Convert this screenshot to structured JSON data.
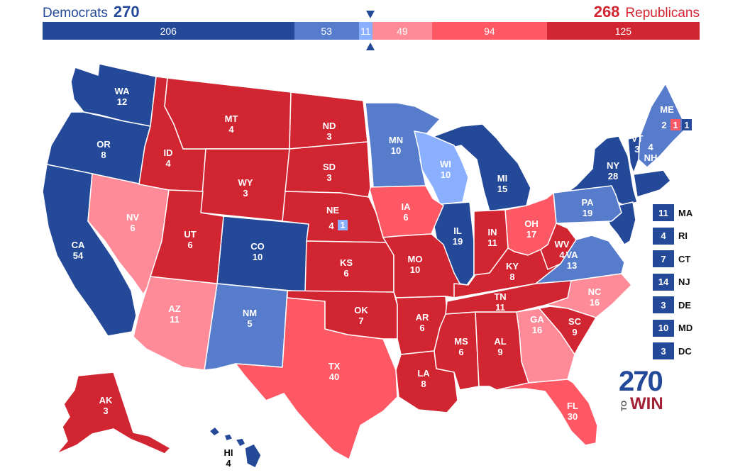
{
  "header": {
    "dem_label": "Democrats",
    "dem_total": "270",
    "rep_total": "268",
    "rep_label": "Republicans"
  },
  "colors": {
    "safe_dem": "#244999",
    "likely_dem": "#577ccc",
    "lean_dem": "#8aafff",
    "lean_rep": "#ff8b98",
    "likely_rep": "#ff5865",
    "safe_rep": "#d22532"
  },
  "tally": [
    {
      "value": "206",
      "color": "#244999"
    },
    {
      "value": "53",
      "color": "#577ccc"
    },
    {
      "value": "11",
      "color": "#8aafff"
    },
    {
      "value": "49",
      "color": "#ff8b98"
    },
    {
      "value": "94",
      "color": "#ff5865"
    },
    {
      "value": "125",
      "color": "#d22532"
    }
  ],
  "states": {
    "WA": {
      "abbr": "WA",
      "ev": "12"
    },
    "OR": {
      "abbr": "OR",
      "ev": "8"
    },
    "CA": {
      "abbr": "CA",
      "ev": "54"
    },
    "NV": {
      "abbr": "NV",
      "ev": "6"
    },
    "ID": {
      "abbr": "ID",
      "ev": "4"
    },
    "MT": {
      "abbr": "MT",
      "ev": "4"
    },
    "WY": {
      "abbr": "WY",
      "ev": "3"
    },
    "UT": {
      "abbr": "UT",
      "ev": "6"
    },
    "AZ": {
      "abbr": "AZ",
      "ev": "11"
    },
    "CO": {
      "abbr": "CO",
      "ev": "10"
    },
    "NM": {
      "abbr": "NM",
      "ev": "5"
    },
    "ND": {
      "abbr": "ND",
      "ev": "3"
    },
    "SD": {
      "abbr": "SD",
      "ev": "3"
    },
    "NE": {
      "abbr": "NE",
      "ev": "4"
    },
    "NE_CD2": {
      "ev": "1"
    },
    "KS": {
      "abbr": "KS",
      "ev": "6"
    },
    "OK": {
      "abbr": "OK",
      "ev": "7"
    },
    "TX": {
      "abbr": "TX",
      "ev": "40"
    },
    "MN": {
      "abbr": "MN",
      "ev": "10"
    },
    "IA": {
      "abbr": "IA",
      "ev": "6"
    },
    "MO": {
      "abbr": "MO",
      "ev": "10"
    },
    "AR": {
      "abbr": "AR",
      "ev": "6"
    },
    "LA": {
      "abbr": "LA",
      "ev": "8"
    },
    "WI": {
      "abbr": "WI",
      "ev": "10"
    },
    "IL": {
      "abbr": "IL",
      "ev": "19"
    },
    "MI": {
      "abbr": "MI",
      "ev": "15"
    },
    "IN": {
      "abbr": "IN",
      "ev": "11"
    },
    "OH": {
      "abbr": "OH",
      "ev": "17"
    },
    "KY": {
      "abbr": "KY",
      "ev": "8"
    },
    "TN": {
      "abbr": "TN",
      "ev": "11"
    },
    "MS": {
      "abbr": "MS",
      "ev": "6"
    },
    "AL": {
      "abbr": "AL",
      "ev": "9"
    },
    "GA": {
      "abbr": "GA",
      "ev": "16"
    },
    "FL": {
      "abbr": "FL",
      "ev": "30"
    },
    "SC": {
      "abbr": "SC",
      "ev": "9"
    },
    "NC": {
      "abbr": "NC",
      "ev": "16"
    },
    "VA": {
      "abbr": "VA",
      "ev": "13"
    },
    "WV": {
      "abbr": "WV",
      "ev": "4"
    },
    "PA": {
      "abbr": "PA",
      "ev": "19"
    },
    "NY": {
      "abbr": "NY",
      "ev": "28"
    },
    "VT": {
      "abbr": "VT",
      "ev": "3"
    },
    "NH": {
      "abbr": "NH",
      "ev": "4"
    },
    "ME": {
      "abbr": "ME",
      "ev_statewide": "2",
      "ev_cd2": "1",
      "ev_cd1": "1"
    },
    "AK": {
      "abbr": "AK",
      "ev": "3"
    },
    "HI": {
      "abbr": "HI",
      "ev": "4"
    }
  },
  "side_states": [
    {
      "ev": "11",
      "abbr": "MA"
    },
    {
      "ev": "4",
      "abbr": "RI"
    },
    {
      "ev": "7",
      "abbr": "CT"
    },
    {
      "ev": "14",
      "abbr": "NJ"
    },
    {
      "ev": "3",
      "abbr": "DE"
    },
    {
      "ev": "10",
      "abbr": "MD"
    },
    {
      "ev": "3",
      "abbr": "DC"
    }
  ],
  "logo": {
    "number": "270",
    "to": "TO",
    "win": "WIN"
  }
}
